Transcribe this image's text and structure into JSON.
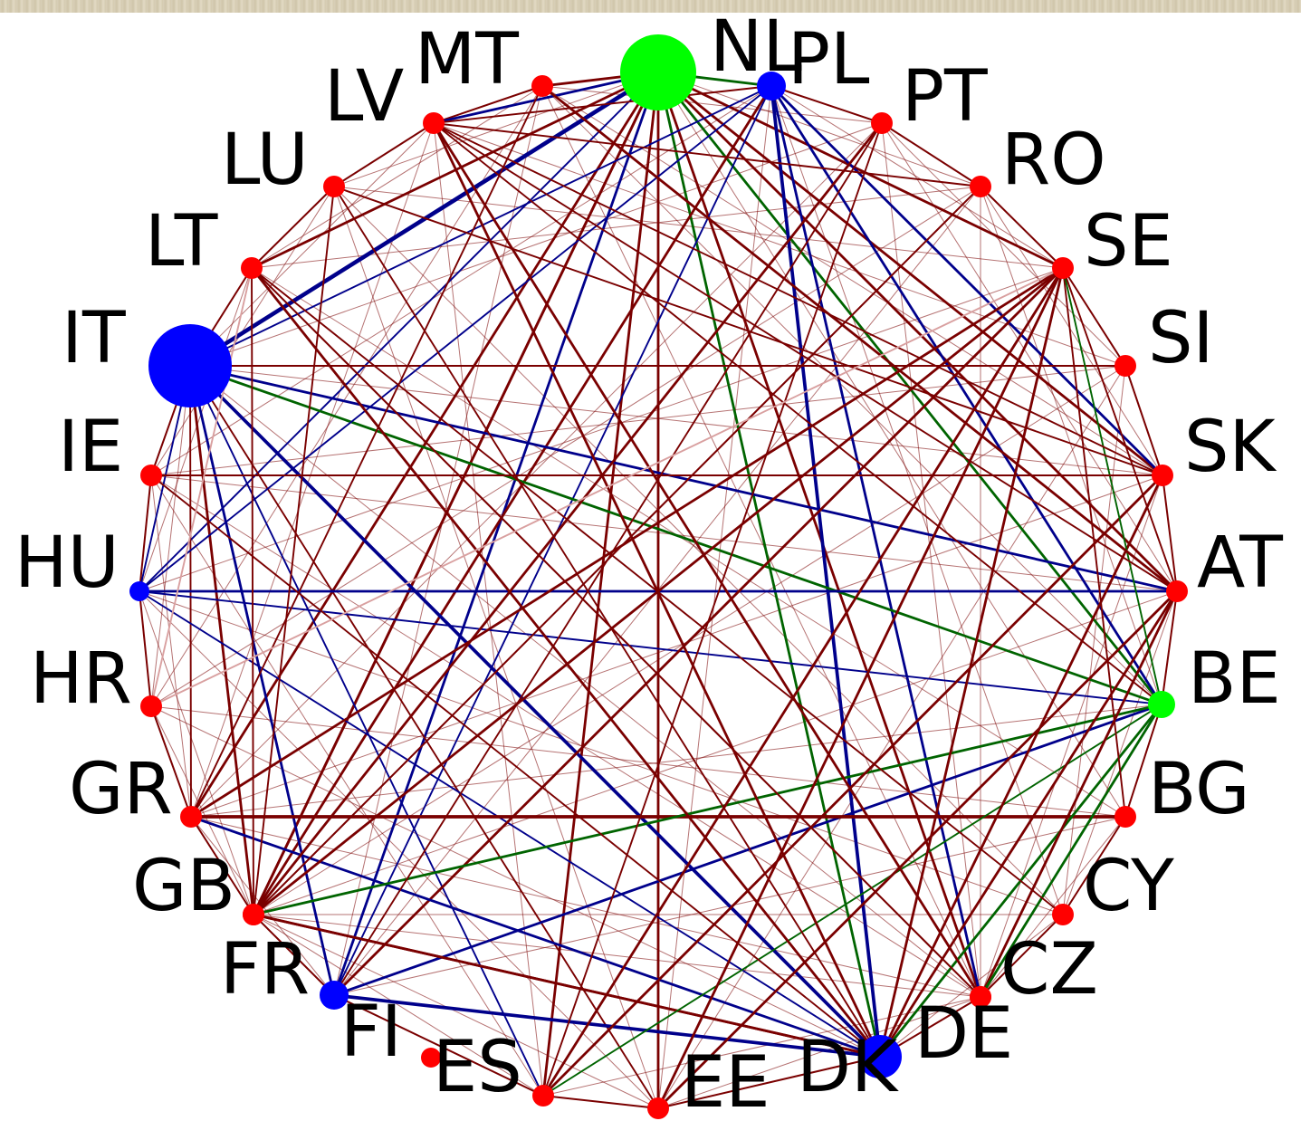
{
  "colors": {
    "red": "#ff0000",
    "blue": "#0000ff",
    "green": "#00ff00",
    "edge_red": "#7a0000",
    "edge_blue": "#00008b",
    "edge_green": "#006400",
    "edge_pink": "#d9a0a0"
  },
  "nodes": [
    {
      "id": "AT",
      "label": "AT",
      "color": "red"
    },
    {
      "id": "BE",
      "label": "BE",
      "color": "green"
    },
    {
      "id": "BG",
      "label": "BG",
      "color": "red"
    },
    {
      "id": "CY",
      "label": "CY",
      "color": "red"
    },
    {
      "id": "CZ",
      "label": "CZ",
      "color": "red"
    },
    {
      "id": "DE",
      "label": "DE",
      "color": "red"
    },
    {
      "id": "DK",
      "label": "DK",
      "color": "blue"
    },
    {
      "id": "EE",
      "label": "EE",
      "color": "red"
    },
    {
      "id": "ES",
      "label": "ES",
      "color": "red"
    },
    {
      "id": "FI",
      "label": "FI",
      "color": "blue"
    },
    {
      "id": "FR",
      "label": "FR",
      "color": "red"
    },
    {
      "id": "GB",
      "label": "GB",
      "color": "red"
    },
    {
      "id": "GR",
      "label": "GR",
      "color": "red"
    },
    {
      "id": "HR",
      "label": "HR",
      "color": "red"
    },
    {
      "id": "HU",
      "label": "HU",
      "color": "blue"
    },
    {
      "id": "IE",
      "label": "IE",
      "color": "red"
    },
    {
      "id": "IT",
      "label": "IT",
      "color": "blue"
    },
    {
      "id": "LT",
      "label": "LT",
      "color": "red"
    },
    {
      "id": "LU",
      "label": "LU",
      "color": "red"
    },
    {
      "id": "LV",
      "label": "LV",
      "color": "red"
    },
    {
      "id": "MT",
      "label": "MT",
      "color": "red"
    },
    {
      "id": "NL",
      "label": "NL",
      "color": "green"
    },
    {
      "id": "PL",
      "label": "PL",
      "color": "blue"
    },
    {
      "id": "PT",
      "label": "PT",
      "color": "red"
    },
    {
      "id": "RO",
      "label": "RO",
      "color": "red"
    },
    {
      "id": "SE",
      "label": "SE",
      "color": "red"
    },
    {
      "id": "SI",
      "label": "SI",
      "color": "red"
    },
    {
      "id": "SK",
      "label": "SK",
      "color": "red"
    }
  ],
  "edges": [
    {
      "from": "NL",
      "to": "IT",
      "color": "edge_blue",
      "weight": 4
    },
    {
      "from": "NL",
      "to": "LV",
      "color": "edge_blue",
      "weight": 2
    },
    {
      "from": "NL",
      "to": "MT",
      "color": "edge_red",
      "weight": 2
    },
    {
      "from": "NL",
      "to": "PL",
      "color": "edge_green",
      "weight": 2
    },
    {
      "from": "NL",
      "to": "DK",
      "color": "edge_green",
      "weight": 2
    },
    {
      "from": "NL",
      "to": "BE",
      "color": "edge_green",
      "weight": 2
    },
    {
      "from": "NL",
      "to": "LT",
      "color": "edge_red",
      "weight": 2
    },
    {
      "from": "NL",
      "to": "GR",
      "color": "edge_red",
      "weight": 2
    },
    {
      "from": "NL",
      "to": "GB",
      "color": "edge_red",
      "weight": 2
    },
    {
      "from": "NL",
      "to": "FR",
      "color": "edge_red",
      "weight": 2
    },
    {
      "from": "NL",
      "to": "ES",
      "color": "edge_red",
      "weight": 2
    },
    {
      "from": "NL",
      "to": "EE",
      "color": "edge_red",
      "weight": 2
    },
    {
      "from": "NL",
      "to": "DE",
      "color": "edge_red",
      "weight": 2
    },
    {
      "from": "NL",
      "to": "AT",
      "color": "edge_red",
      "weight": 2
    },
    {
      "from": "NL",
      "to": "SK",
      "color": "edge_red",
      "weight": 2
    },
    {
      "from": "NL",
      "to": "SE",
      "color": "edge_red",
      "weight": 2
    },
    {
      "from": "NL",
      "to": "HU",
      "color": "edge_blue",
      "weight": 1
    },
    {
      "from": "NL",
      "to": "FI",
      "color": "edge_blue",
      "weight": 2
    },
    {
      "from": "PL",
      "to": "DK",
      "color": "edge_blue",
      "weight": 3
    },
    {
      "from": "PL",
      "to": "BE",
      "color": "edge_blue",
      "weight": 2
    },
    {
      "from": "PL",
      "to": "DE",
      "color": "edge_blue",
      "weight": 2
    },
    {
      "from": "PL",
      "to": "SK",
      "color": "edge_blue",
      "weight": 2
    },
    {
      "from": "PL",
      "to": "FI",
      "color": "edge_blue",
      "weight": 1
    },
    {
      "from": "PL",
      "to": "LV",
      "color": "edge_red",
      "weight": 1
    },
    {
      "from": "PL",
      "to": "GB",
      "color": "edge_red",
      "weight": 1
    },
    {
      "from": "PL",
      "to": "FR",
      "color": "edge_red",
      "weight": 2
    },
    {
      "from": "IT",
      "to": "DK",
      "color": "edge_blue",
      "weight": 3
    },
    {
      "from": "IT",
      "to": "BE",
      "color": "edge_green",
      "weight": 2
    },
    {
      "from": "IT",
      "to": "AT",
      "color": "edge_blue",
      "weight": 2
    },
    {
      "from": "IT",
      "to": "FI",
      "color": "edge_blue",
      "weight": 2
    },
    {
      "from": "IT",
      "to": "SI",
      "color": "edge_red",
      "weight": 1
    },
    {
      "from": "IT",
      "to": "PL",
      "color": "edge_blue",
      "weight": 1
    },
    {
      "from": "IT",
      "to": "GR",
      "color": "edge_red",
      "weight": 1
    },
    {
      "from": "IT",
      "to": "FR",
      "color": "edge_red",
      "weight": 2
    },
    {
      "from": "IT",
      "to": "ES",
      "color": "edge_blue",
      "weight": 1
    },
    {
      "from": "IT",
      "to": "EE",
      "color": "edge_red",
      "weight": 1
    },
    {
      "from": "HU",
      "to": "AT",
      "color": "edge_blue",
      "weight": 2
    },
    {
      "from": "HU",
      "to": "BE",
      "color": "edge_blue",
      "weight": 1
    },
    {
      "from": "HU",
      "to": "DK",
      "color": "edge_blue",
      "weight": 1
    },
    {
      "from": "HU",
      "to": "PL",
      "color": "edge_blue",
      "weight": 1
    },
    {
      "from": "HU",
      "to": "IT",
      "color": "edge_blue",
      "weight": 1
    },
    {
      "from": "FI",
      "to": "DK",
      "color": "edge_blue",
      "weight": 3
    },
    {
      "from": "FI",
      "to": "BE",
      "color": "edge_blue",
      "weight": 2
    },
    {
      "from": "FI",
      "to": "SE",
      "color": "edge_red",
      "weight": 2
    },
    {
      "from": "GR",
      "to": "BG",
      "color": "edge_red",
      "weight": 3
    },
    {
      "from": "GR",
      "to": "DK",
      "color": "edge_blue",
      "weight": 2
    },
    {
      "from": "GR",
      "to": "SE",
      "color": "edge_red",
      "weight": 2
    },
    {
      "from": "GR",
      "to": "MT",
      "color": "edge_red",
      "weight": 1
    },
    {
      "from": "FR",
      "to": "BE",
      "color": "edge_green",
      "weight": 2
    },
    {
      "from": "FR",
      "to": "DK",
      "color": "edge_red",
      "weight": 2
    },
    {
      "from": "FR",
      "to": "SE",
      "color": "edge_red",
      "weight": 2
    },
    {
      "from": "FR",
      "to": "PT",
      "color": "edge_red",
      "weight": 2
    },
    {
      "from": "FR",
      "to": "LT",
      "color": "edge_red",
      "weight": 1
    },
    {
      "from": "GB",
      "to": "DK",
      "color": "edge_red",
      "weight": 2
    },
    {
      "from": "GB",
      "to": "RO",
      "color": "edge_red",
      "weight": 1
    },
    {
      "from": "ES",
      "to": "SK",
      "color": "edge_red",
      "weight": 2
    },
    {
      "from": "ES",
      "to": "BE",
      "color": "edge_green",
      "weight": 1
    },
    {
      "from": "ES",
      "to": "SE",
      "color": "edge_red",
      "weight": 2
    },
    {
      "from": "EE",
      "to": "SE",
      "color": "edge_red",
      "weight": 2
    },
    {
      "from": "EE",
      "to": "AT",
      "color": "edge_red",
      "weight": 2
    },
    {
      "from": "DK",
      "to": "AT",
      "color": "edge_red",
      "weight": 2
    },
    {
      "from": "DK",
      "to": "SK",
      "color": "edge_red",
      "weight": 2
    },
    {
      "from": "DK",
      "to": "SE",
      "color": "edge_red",
      "weight": 2
    },
    {
      "from": "DK",
      "to": "LT",
      "color": "edge_red",
      "weight": 2
    },
    {
      "from": "DK",
      "to": "LV",
      "color": "edge_red",
      "weight": 2
    },
    {
      "from": "DK",
      "to": "BE",
      "color": "edge_green",
      "weight": 2
    },
    {
      "from": "DE",
      "to": "AT",
      "color": "edge_red",
      "weight": 2
    },
    {
      "from": "DE",
      "to": "LV",
      "color": "edge_red",
      "weight": 2
    },
    {
      "from": "DE",
      "to": "LT",
      "color": "edge_red",
      "weight": 1
    },
    {
      "from": "DE",
      "to": "BE",
      "color": "edge_green",
      "weight": 2
    },
    {
      "from": "CZ",
      "to": "LV",
      "color": "edge_red",
      "weight": 1
    },
    {
      "from": "CZ",
      "to": "LT",
      "color": "edge_red",
      "weight": 1
    },
    {
      "from": "CY",
      "to": "LT",
      "color": "edge_red",
      "weight": 1
    },
    {
      "from": "BG",
      "to": "SE",
      "color": "edge_red",
      "weight": 1
    },
    {
      "from": "BE",
      "to": "SE",
      "color": "edge_green",
      "weight": 1
    },
    {
      "from": "BE",
      "to": "LV",
      "color": "edge_red",
      "weight": 1
    },
    {
      "from": "AT",
      "to": "SE",
      "color": "edge_red",
      "weight": 1
    },
    {
      "from": "AT",
      "to": "MT",
      "color": "edge_red",
      "weight": 2
    },
    {
      "from": "AT",
      "to": "LV",
      "color": "edge_red",
      "weight": 1
    },
    {
      "from": "SK",
      "to": "LV",
      "color": "edge_red",
      "weight": 1
    },
    {
      "from": "RO",
      "to": "LV",
      "color": "edge_red",
      "weight": 1
    },
    {
      "from": "RO",
      "to": "FR",
      "color": "edge_red",
      "weight": 1
    },
    {
      "from": "PT",
      "to": "ES",
      "color": "edge_red",
      "weight": 1
    },
    {
      "from": "PT",
      "to": "FI",
      "color": "edge_red",
      "weight": 1
    },
    {
      "from": "LU",
      "to": "FR",
      "color": "edge_red",
      "weight": 1
    },
    {
      "from": "LU",
      "to": "DK",
      "color": "edge_red",
      "weight": 1
    },
    {
      "from": "LU",
      "to": "SK",
      "color": "edge_red",
      "weight": 1
    },
    {
      "from": "IE",
      "to": "SK",
      "color": "edge_red",
      "weight": 1
    },
    {
      "from": "IE",
      "to": "DK",
      "color": "edge_red",
      "weight": 1
    },
    {
      "from": "HR",
      "to": "LT",
      "color": "edge_pink",
      "weight": 1
    },
    {
      "from": "HR",
      "to": "SE",
      "color": "edge_pink",
      "weight": 1
    }
  ]
}
